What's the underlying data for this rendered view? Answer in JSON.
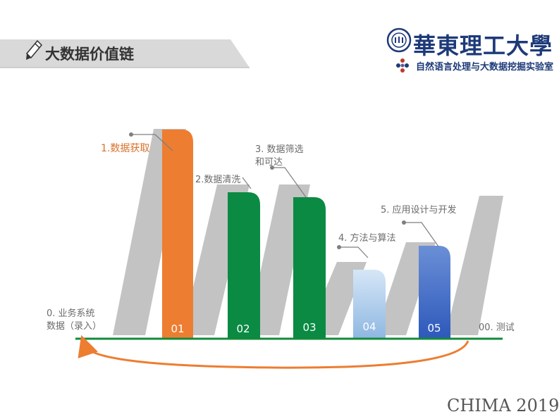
{
  "header": {
    "title": "大数据价值链",
    "university_name": "華東理工大學",
    "lab_name": "自然语言处理与大数据挖掘实验室"
  },
  "steps": [
    {
      "number": "01",
      "label": "1.数据获取",
      "color": "#ed7d31"
    },
    {
      "number": "02",
      "label": "2.数据清洗",
      "color": "#0b8a43"
    },
    {
      "number": "03",
      "label_line1": "3. 数据筛选",
      "label_line2": "和可达",
      "color": "#0b8a43"
    },
    {
      "number": "04",
      "label": "4. 方法与算法",
      "color": "#9dc3e6"
    },
    {
      "number": "05",
      "label": "5. 应用设计与开发",
      "color": "#3a66c4"
    }
  ],
  "start": {
    "label_line1": "0. 业务系统",
    "label_line2": "数据（录入）"
  },
  "end": {
    "label": "00. 测试"
  },
  "footer": "CHIMA 2019"
}
